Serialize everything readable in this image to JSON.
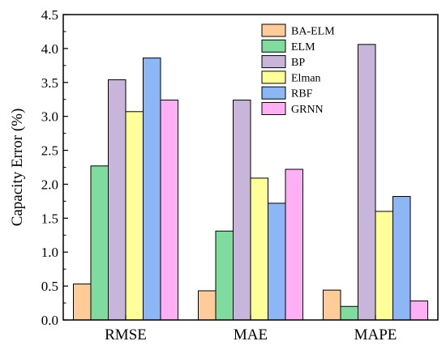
{
  "chart_data": {
    "type": "bar",
    "categories": [
      "RMSE",
      "MAE",
      "MAPE"
    ],
    "ylabel": "Capacity Error (%)",
    "xlabel": "",
    "ylim": [
      0,
      4.5
    ],
    "yticks": [
      "0.0",
      "0.5",
      "1.0",
      "1.5",
      "2.0",
      "2.5",
      "3.0",
      "3.5",
      "4.0",
      "4.5"
    ],
    "grid": false,
    "legend_position": "top-right",
    "series": [
      {
        "name": "BA-ELM",
        "color": "#FFCC99",
        "values": [
          0.53,
          0.43,
          0.44
        ]
      },
      {
        "name": "ELM",
        "color": "#80DC9E",
        "values": [
          2.27,
          1.31,
          0.2
        ]
      },
      {
        "name": "BP",
        "color": "#C8B6DA",
        "values": [
          3.54,
          3.24,
          4.06
        ]
      },
      {
        "name": "Elman",
        "color": "#FFFF99",
        "values": [
          3.07,
          2.09,
          1.6
        ]
      },
      {
        "name": "RBF",
        "color": "#8DB6F5",
        "values": [
          3.86,
          1.72,
          1.82
        ]
      },
      {
        "name": "GRNN",
        "color": "#FFB0F5",
        "values": [
          3.24,
          2.22,
          0.28
        ]
      }
    ]
  }
}
